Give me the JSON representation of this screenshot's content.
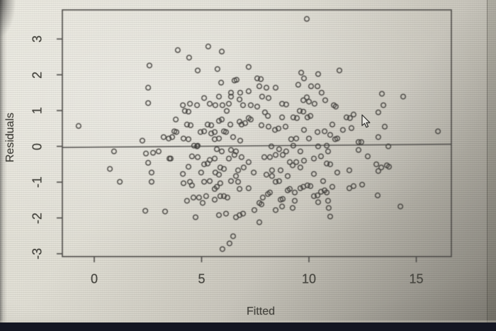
{
  "colors": {
    "point_stroke": "#3d3c38",
    "axis": "#4b4a46",
    "text": "#46453f",
    "screen_light": "#e9e7dd",
    "screen_dark": "#7f7c74",
    "taskbar": "#141622"
  },
  "cursor": {
    "icon": "arrow-pointer"
  },
  "chart_data": {
    "type": "scatter",
    "title": "",
    "xlabel": "Fitted",
    "ylabel": "Residuals",
    "xticks": [
      0,
      5,
      10,
      15
    ],
    "yticks": [
      -3,
      -2,
      -1,
      0,
      1,
      2,
      3
    ],
    "xlim": [
      -1.4,
      16.6
    ],
    "ylim": [
      -3.1,
      3.8
    ],
    "grid": false,
    "legend": "none",
    "marker": "open-circle",
    "reference_line_y": 0,
    "points": [
      [
        2.57,
        2.26
      ],
      [
        2.51,
        1.64
      ],
      [
        3.89,
        2.69
      ],
      [
        4.42,
        2.48
      ],
      [
        5.31,
        2.79
      ],
      [
        5.94,
        2.65
      ],
      [
        4.82,
        2.12
      ],
      [
        5.74,
        2.16
      ],
      [
        7.19,
        2.22
      ],
      [
        6.63,
        1.86
      ],
      [
        6.53,
        1.84
      ],
      [
        5.91,
        1.78
      ],
      [
        7.59,
        1.9
      ],
      [
        6.37,
        1.5
      ],
      [
        6.8,
        1.5
      ],
      [
        7.19,
        1.54
      ],
      [
        9.9,
        3.56
      ],
      [
        9.64,
        2.06
      ],
      [
        9.77,
        1.9
      ],
      [
        10.43,
        2.02
      ],
      [
        11.42,
        2.12
      ],
      [
        9.5,
        1.72
      ],
      [
        10.1,
        1.68
      ],
      [
        10.4,
        1.68
      ],
      [
        7.76,
        1.88
      ],
      [
        7.69,
        1.68
      ],
      [
        8.02,
        1.64
      ],
      [
        8.45,
        1.64
      ],
      [
        10.59,
        1.5
      ],
      [
        13.4,
        1.47
      ],
      [
        14.39,
        1.39
      ],
      [
        13.47,
        1.15
      ],
      [
        2.51,
        1.21
      ],
      [
        -0.73,
        0.57
      ],
      [
        2.24,
        0.16
      ],
      [
        0.92,
        -0.14
      ],
      [
        2.41,
        -0.2
      ],
      [
        2.74,
        -0.18
      ],
      [
        3.0,
        -0.14
      ],
      [
        2.51,
        -0.46
      ],
      [
        0.73,
        -0.63
      ],
      [
        2.67,
        -0.73
      ],
      [
        5.12,
        1.35
      ],
      [
        5.81,
        1.39
      ],
      [
        6.37,
        1.39
      ],
      [
        6.77,
        1.31
      ],
      [
        4.13,
        1.15
      ],
      [
        4.46,
        1.19
      ],
      [
        4.79,
        1.15
      ],
      [
        5.38,
        1.19
      ],
      [
        5.64,
        1.15
      ],
      [
        5.97,
        1.15
      ],
      [
        6.27,
        1.19
      ],
      [
        6.93,
        1.15
      ],
      [
        7.29,
        1.15
      ],
      [
        7.59,
        1.11
      ],
      [
        4.22,
        0.99
      ],
      [
        4.39,
        0.97
      ],
      [
        6.17,
        0.99
      ],
      [
        3.8,
        0.75
      ],
      [
        4.32,
        0.61
      ],
      [
        4.49,
        0.59
      ],
      [
        5.28,
        0.61
      ],
      [
        5.45,
        0.59
      ],
      [
        5.81,
        0.71
      ],
      [
        5.94,
        0.75
      ],
      [
        6.34,
        0.61
      ],
      [
        6.77,
        0.69
      ],
      [
        6.86,
        0.61
      ],
      [
        7.03,
        0.65
      ],
      [
        7.19,
        0.79
      ],
      [
        7.29,
        0.75
      ],
      [
        3.73,
        0.42
      ],
      [
        3.83,
        0.4
      ],
      [
        4.95,
        0.4
      ],
      [
        5.12,
        0.42
      ],
      [
        5.45,
        0.36
      ],
      [
        5.61,
        0.4
      ],
      [
        6.04,
        0.42
      ],
      [
        6.14,
        0.4
      ],
      [
        3.47,
        0.22
      ],
      [
        3.63,
        0.26
      ],
      [
        4.16,
        0.22
      ],
      [
        4.39,
        0.2
      ],
      [
        4.65,
        0.02
      ],
      [
        4.82,
        0.02
      ],
      [
        5.61,
        0.2
      ],
      [
        5.81,
        0.22
      ],
      [
        6.47,
        0.26
      ],
      [
        6.8,
        0.16
      ],
      [
        3.23,
        0.26
      ],
      [
        4.79,
        0.0
      ],
      [
        5.71,
        -0.08
      ],
      [
        5.94,
        -0.14
      ],
      [
        6.37,
        -0.1
      ],
      [
        6.6,
        -0.14
      ],
      [
        3.56,
        -0.34
      ],
      [
        4.55,
        -0.28
      ],
      [
        4.82,
        -0.3
      ],
      [
        5.38,
        -0.38
      ],
      [
        5.61,
        -0.34
      ],
      [
        6.27,
        -0.34
      ],
      [
        6.53,
        -0.24
      ],
      [
        6.86,
        -0.3
      ],
      [
        7.19,
        -0.44
      ],
      [
        3.5,
        -0.34
      ],
      [
        4.39,
        -0.57
      ],
      [
        5.12,
        -0.5
      ],
      [
        5.28,
        -0.48
      ],
      [
        5.87,
        -0.59
      ],
      [
        6.04,
        -0.63
      ],
      [
        6.7,
        -0.67
      ],
      [
        6.96,
        -0.59
      ],
      [
        4.13,
        -0.77
      ],
      [
        4.98,
        -0.73
      ],
      [
        5.64,
        -0.73
      ],
      [
        5.81,
        -0.79
      ],
      [
        6.6,
        -0.83
      ],
      [
        7.43,
        -0.73
      ],
      [
        7.82,
        1.39
      ],
      [
        8.12,
        1.35
      ],
      [
        8.75,
        1.19
      ],
      [
        8.94,
        1.17
      ],
      [
        9.74,
        1.29
      ],
      [
        9.9,
        1.37
      ],
      [
        10.0,
        1.25
      ],
      [
        10.26,
        1.19
      ],
      [
        10.76,
        1.29
      ],
      [
        11.16,
        1.15
      ],
      [
        11.25,
        1.11
      ],
      [
        9.57,
        0.99
      ],
      [
        9.74,
        0.97
      ],
      [
        7.95,
        0.95
      ],
      [
        8.09,
        0.85
      ],
      [
        8.75,
        0.81
      ],
      [
        9.27,
        0.81
      ],
      [
        9.44,
        0.79
      ],
      [
        9.93,
        0.81
      ],
      [
        10.07,
        0.85
      ],
      [
        11.09,
        0.61
      ],
      [
        11.75,
        0.81
      ],
      [
        11.91,
        0.79
      ],
      [
        12.08,
        0.89
      ],
      [
        7.79,
        0.59
      ],
      [
        8.12,
        0.55
      ],
      [
        8.42,
        0.46
      ],
      [
        8.58,
        0.5
      ],
      [
        8.91,
        0.55
      ],
      [
        9.17,
        0.2
      ],
      [
        9.41,
        0.22
      ],
      [
        9.77,
        0.46
      ],
      [
        10.0,
        0.22
      ],
      [
        10.4,
        0.4
      ],
      [
        10.73,
        0.42
      ],
      [
        10.99,
        0.32
      ],
      [
        11.32,
        0.22
      ],
      [
        11.58,
        0.46
      ],
      [
        11.98,
        0.51
      ],
      [
        8.25,
        0.0
      ],
      [
        8.61,
        -0.08
      ],
      [
        8.94,
        -0.14
      ],
      [
        9.27,
        0.02
      ],
      [
        9.6,
        -0.14
      ],
      [
        10.43,
        0.0
      ],
      [
        10.83,
        0.02
      ],
      [
        10.89,
        -0.14
      ],
      [
        11.22,
        0.2
      ],
      [
        7.92,
        -0.3
      ],
      [
        8.18,
        -0.3
      ],
      [
        8.45,
        -0.24
      ],
      [
        8.78,
        -0.24
      ],
      [
        9.11,
        -0.44
      ],
      [
        9.41,
        -0.44
      ],
      [
        9.77,
        -0.4
      ],
      [
        10.23,
        -0.34
      ],
      [
        10.56,
        -0.28
      ],
      [
        10.83,
        -0.48
      ],
      [
        10.99,
        -0.5
      ],
      [
        8.28,
        -0.67
      ],
      [
        8.68,
        -0.67
      ],
      [
        9.24,
        -0.53
      ],
      [
        9.6,
        -0.59
      ],
      [
        10.23,
        -0.77
      ],
      [
        11.32,
        -0.73
      ],
      [
        11.88,
        -0.67
      ],
      [
        8.02,
        -0.79
      ],
      [
        8.28,
        -0.83
      ],
      [
        9.01,
        -0.83
      ],
      [
        13.23,
        0.95
      ],
      [
        13.53,
        0.55
      ],
      [
        16.01,
        0.42
      ],
      [
        13.23,
        0.26
      ],
      [
        12.44,
        0.12
      ],
      [
        12.31,
        0.12
      ],
      [
        13.7,
        0.0
      ],
      [
        12.31,
        -0.1
      ],
      [
        12.74,
        -0.28
      ],
      [
        13.14,
        -0.5
      ],
      [
        13.37,
        -0.59
      ],
      [
        13.63,
        -0.53
      ],
      [
        13.73,
        -0.57
      ],
      [
        13.23,
        -0.69
      ],
      [
        1.19,
        -0.99
      ],
      [
        2.67,
        -0.99
      ],
      [
        2.38,
        -1.8
      ],
      [
        4.16,
        -1.03
      ],
      [
        4.46,
        -0.99
      ],
      [
        4.55,
        -1.09
      ],
      [
        5.12,
        -0.99
      ],
      [
        5.38,
        -0.97
      ],
      [
        5.61,
        -1.19
      ],
      [
        5.71,
        -1.13
      ],
      [
        5.87,
        -1.03
      ],
      [
        6.37,
        -0.97
      ],
      [
        6.7,
        -0.99
      ],
      [
        6.77,
        -1.19
      ],
      [
        7.19,
        -1.17
      ],
      [
        4.32,
        -1.52
      ],
      [
        4.62,
        -1.43
      ],
      [
        4.88,
        -1.43
      ],
      [
        5.05,
        -1.58
      ],
      [
        5.21,
        -1.39
      ],
      [
        5.61,
        -1.49
      ],
      [
        5.87,
        -1.39
      ],
      [
        6.04,
        -1.39
      ],
      [
        6.2,
        -1.43
      ],
      [
        3.3,
        -1.82
      ],
      [
        4.72,
        -1.98
      ],
      [
        5.81,
        -1.92
      ],
      [
        6.14,
        -1.88
      ],
      [
        6.6,
        -1.98
      ],
      [
        6.77,
        -1.92
      ],
      [
        6.93,
        -1.88
      ],
      [
        7.46,
        -1.78
      ],
      [
        6.47,
        -2.51
      ],
      [
        6.3,
        -2.71
      ],
      [
        5.97,
        -2.87
      ],
      [
        8.45,
        -0.99
      ],
      [
        8.61,
        -0.97
      ],
      [
        9.01,
        -1.23
      ],
      [
        9.11,
        -1.19
      ],
      [
        9.34,
        -1.29
      ],
      [
        9.6,
        -1.17
      ],
      [
        9.74,
        -1.13
      ],
      [
        9.93,
        -1.09
      ],
      [
        10.07,
        -1.11
      ],
      [
        10.66,
        -0.97
      ],
      [
        11.09,
        -1.13
      ],
      [
        11.88,
        -1.17
      ],
      [
        12.08,
        -1.11
      ],
      [
        7.85,
        -1.43
      ],
      [
        8.09,
        -1.33
      ],
      [
        8.18,
        -1.29
      ],
      [
        8.68,
        -1.49
      ],
      [
        8.78,
        -1.47
      ],
      [
        9.34,
        -1.52
      ],
      [
        10.23,
        -1.39
      ],
      [
        10.4,
        -1.37
      ],
      [
        10.56,
        -1.27
      ],
      [
        10.73,
        -1.23
      ],
      [
        10.83,
        -1.29
      ],
      [
        10.43,
        -1.56
      ],
      [
        10.89,
        -1.52
      ],
      [
        7.69,
        -1.58
      ],
      [
        7.79,
        -1.62
      ],
      [
        8.45,
        -1.78
      ],
      [
        8.75,
        -1.68
      ],
      [
        9.24,
        -1.72
      ],
      [
        10.92,
        -1.72
      ],
      [
        10.99,
        -1.96
      ],
      [
        7.69,
        -2.12
      ],
      [
        12.48,
        -1.07
      ],
      [
        13.2,
        -1.37
      ],
      [
        14.26,
        -1.68
      ]
    ]
  }
}
